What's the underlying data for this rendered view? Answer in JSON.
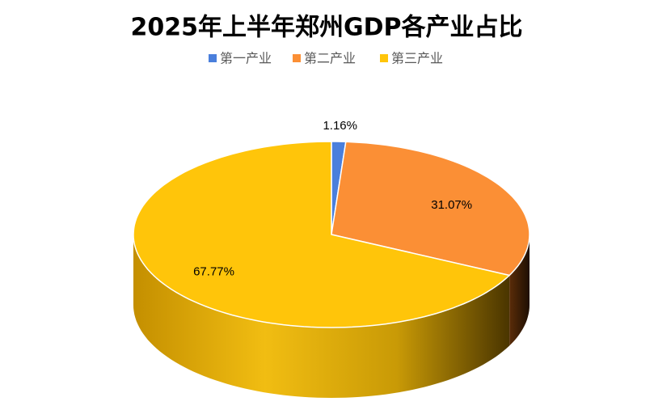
{
  "chart_data": {
    "type": "pie",
    "title": "2025年上半年郑州GDP各产业占比",
    "categories": [
      "第一产业",
      "第二产业",
      "第三产业"
    ],
    "values": [
      1.16,
      31.07,
      67.77
    ],
    "value_labels": [
      "1.16%",
      "31.07%",
      "67.77%"
    ],
    "colors": [
      "#4a7fdc",
      "#fb8f35",
      "#ffc50a"
    ],
    "legend": "top"
  }
}
